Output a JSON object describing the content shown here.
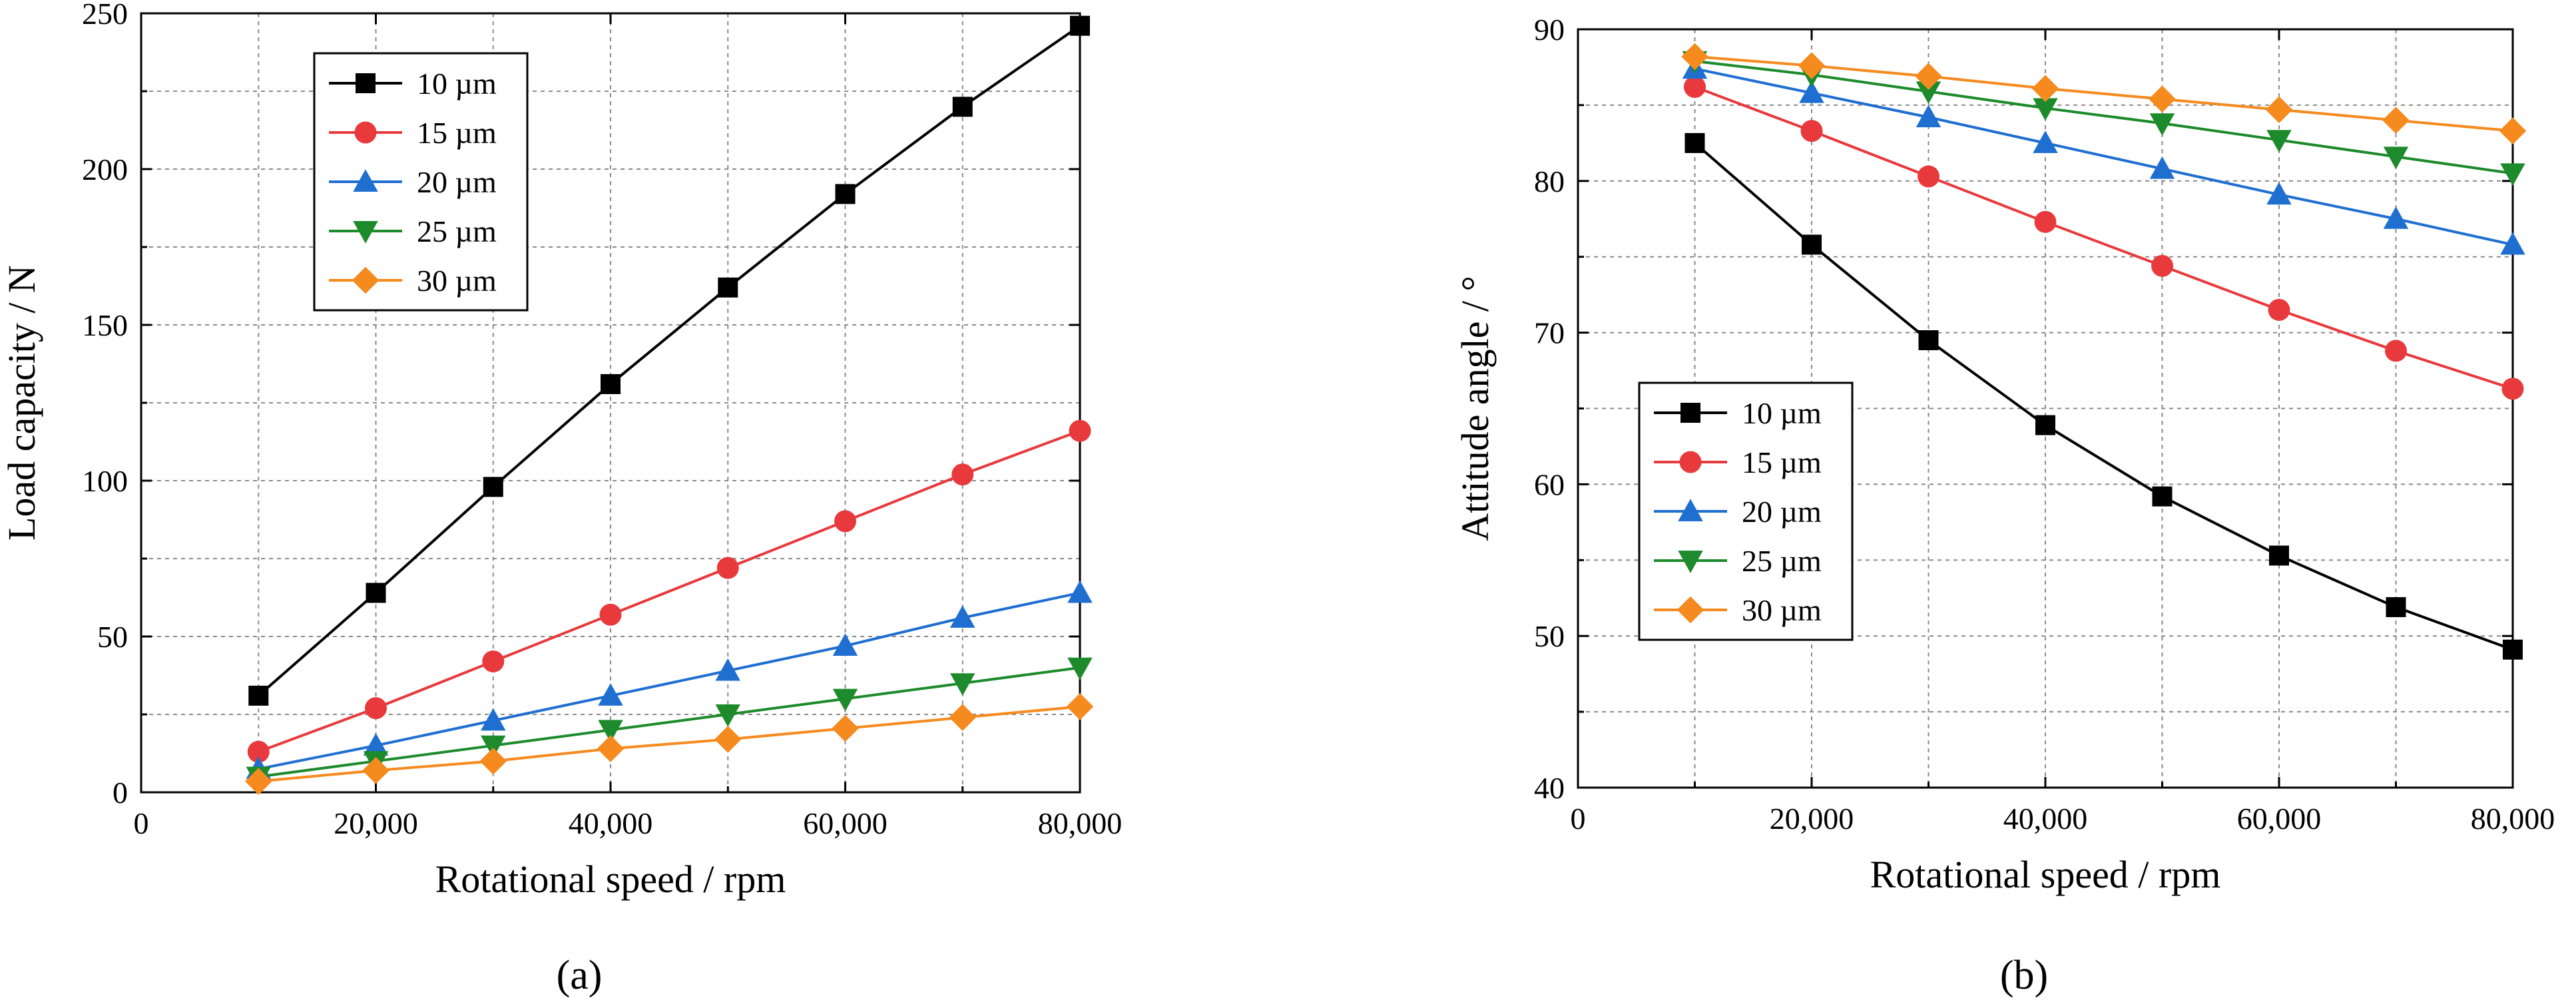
{
  "colors": {
    "s10": "#000000",
    "s15": "#e8393d",
    "s20": "#1f6fd1",
    "s25": "#1d8a2b",
    "s30": "#f58a1f"
  },
  "chart_data": [
    {
      "type": "line",
      "panel_label": "(a)",
      "xlabel": "Rotational speed / rpm",
      "ylabel": "Load capacity / N",
      "xlim": [
        0,
        80000
      ],
      "ylim": [
        0,
        250
      ],
      "xticks": [
        0,
        20000,
        40000,
        60000,
        80000
      ],
      "xtick_labels": [
        "0",
        "20,000",
        "40,000",
        "60,000",
        "80,000"
      ],
      "yticks": [
        0,
        50,
        100,
        150,
        200,
        250
      ],
      "ytick_labels": [
        "0",
        "50",
        "100",
        "150",
        "200",
        "250"
      ],
      "grid": true,
      "legend_position": "top-left",
      "x": [
        10000,
        20000,
        30000,
        40000,
        50000,
        60000,
        70000,
        80000
      ],
      "series": [
        {
          "name": "10 µm",
          "marker": "square",
          "color_key": "s10",
          "values": [
            31,
            64,
            98,
            131,
            162,
            192,
            220,
            246
          ]
        },
        {
          "name": "15 µm",
          "marker": "circle",
          "color_key": "s15",
          "values": [
            13,
            27,
            42,
            57,
            72,
            87,
            102,
            116
          ]
        },
        {
          "name": "20 µm",
          "marker": "triangle-up",
          "color_key": "s20",
          "values": [
            7.5,
            15,
            23,
            31,
            39,
            47,
            56,
            64
          ]
        },
        {
          "name": "25 µm",
          "marker": "triangle-down",
          "color_key": "s25",
          "values": [
            5,
            10,
            15,
            20,
            25,
            30,
            35,
            40
          ]
        },
        {
          "name": "30 µm",
          "marker": "diamond",
          "color_key": "s30",
          "values": [
            3.5,
            7,
            10,
            14,
            17,
            20.5,
            24,
            27.5
          ]
        }
      ]
    },
    {
      "type": "line",
      "panel_label": "(b)",
      "xlabel": "Rotational speed / rpm",
      "ylabel": "Attitude angle / °",
      "xlim": [
        0,
        80000
      ],
      "ylim": [
        40,
        90
      ],
      "xticks": [
        0,
        20000,
        40000,
        60000,
        80000
      ],
      "xtick_labels": [
        "0",
        "20,000",
        "40,000",
        "60,000",
        "80,000"
      ],
      "yticks": [
        40,
        50,
        60,
        70,
        80,
        90
      ],
      "ytick_labels": [
        "40",
        "50",
        "60",
        "70",
        "80",
        "90"
      ],
      "grid": true,
      "legend_position": "center-left",
      "x": [
        10000,
        20000,
        30000,
        40000,
        50000,
        60000,
        70000,
        80000
      ],
      "series": [
        {
          "name": "10 µm",
          "marker": "square",
          "color_key": "s10",
          "values": [
            82.5,
            75.8,
            69.5,
            63.9,
            59.2,
            55.3,
            51.9,
            49.1
          ]
        },
        {
          "name": "15 µm",
          "marker": "circle",
          "color_key": "s15",
          "values": [
            86.2,
            83.3,
            80.3,
            77.3,
            74.4,
            71.5,
            68.8,
            66.3
          ]
        },
        {
          "name": "20 µm",
          "marker": "triangle-up",
          "color_key": "s20",
          "values": [
            87.4,
            85.8,
            84.2,
            82.5,
            80.8,
            79.1,
            77.5,
            75.8
          ]
        },
        {
          "name": "25 µm",
          "marker": "triangle-down",
          "color_key": "s25",
          "values": [
            87.9,
            87.0,
            85.9,
            84.8,
            83.8,
            82.7,
            81.6,
            80.5
          ]
        },
        {
          "name": "30 µm",
          "marker": "diamond",
          "color_key": "s30",
          "values": [
            88.2,
            87.6,
            86.9,
            86.1,
            85.4,
            84.7,
            84.0,
            83.3
          ]
        }
      ]
    }
  ]
}
